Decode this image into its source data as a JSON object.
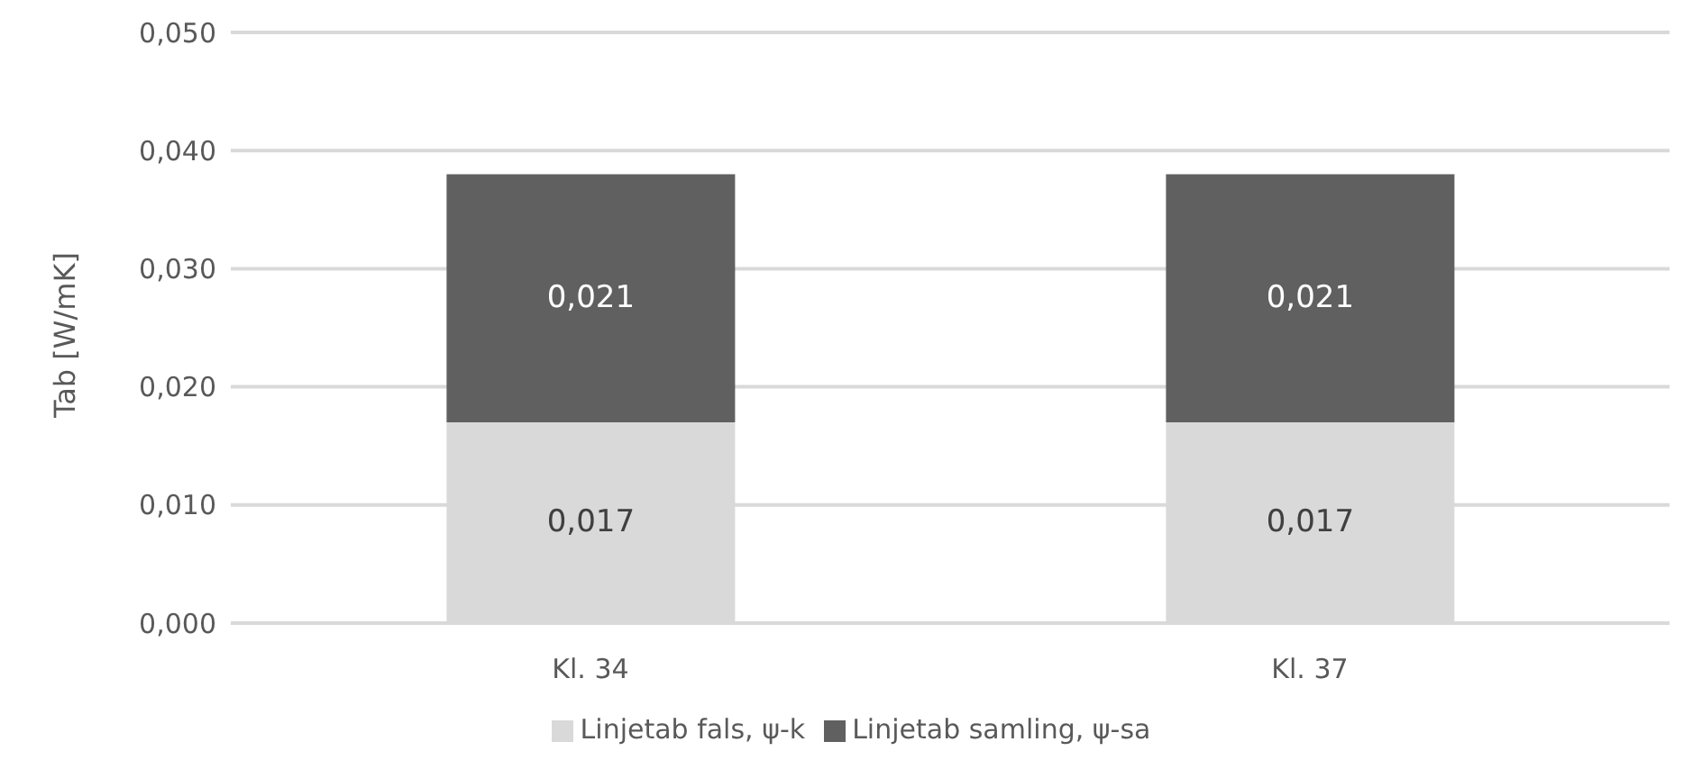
{
  "chart_data": {
    "type": "bar",
    "stacked": true,
    "ylabel": "Tab [W/mK]",
    "categories": [
      "Kl. 34",
      "Kl. 37"
    ],
    "series": [
      {
        "name": "Linjetab fals, ψ-k",
        "color": "#d9d9d9",
        "values": [
          0.017,
          0.017
        ],
        "value_labels": [
          "0,017",
          "0,017"
        ]
      },
      {
        "name": "Linjetab samling, ψ-sa",
        "color": "#606060",
        "values": [
          0.021,
          0.021
        ],
        "value_labels": [
          "0,021",
          "0,021"
        ]
      }
    ],
    "ylim": [
      0,
      0.05
    ],
    "yticks": [
      {
        "value": 0,
        "label": "0,000"
      },
      {
        "value": 0.01,
        "label": "0,010"
      },
      {
        "value": 0.02,
        "label": "0,020"
      },
      {
        "value": 0.03,
        "label": "0,030"
      },
      {
        "value": 0.04,
        "label": "0,040"
      },
      {
        "value": 0.05,
        "label": "0,050"
      }
    ],
    "grid": "y",
    "legend": "bottom"
  }
}
